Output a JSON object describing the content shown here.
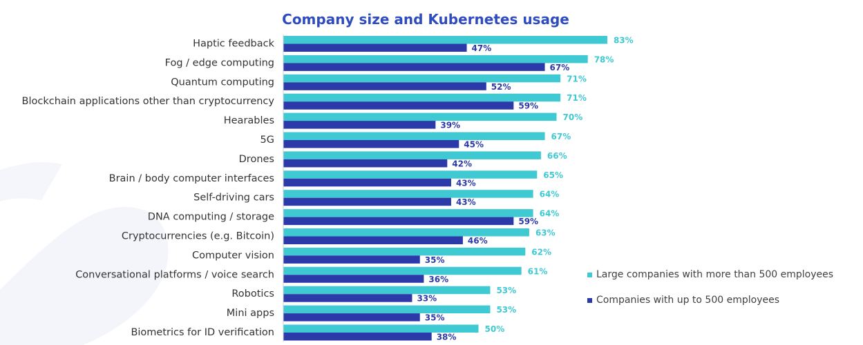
{
  "chart_data": {
    "type": "bar",
    "orientation": "horizontal",
    "title": "Company size and Kubernetes usage",
    "categories": [
      "Haptic feedback",
      "Fog / edge computing",
      "Quantum computing",
      "Blockchain applications other than cryptocurrency",
      "Hearables",
      "5G",
      "Drones",
      "Brain / body computer interfaces",
      "Self-driving cars",
      "DNA computing / storage",
      "Cryptocurrencies (e.g. Bitcoin)",
      "Computer vision",
      "Conversational platforms / voice search",
      "Robotics",
      "Mini apps",
      "Biometrics for ID verification"
    ],
    "series": [
      {
        "name": "Large companies with more than 500 employees",
        "color": "#3fc9d3",
        "values": [
          83,
          78,
          71,
          71,
          70,
          67,
          66,
          65,
          64,
          64,
          63,
          62,
          61,
          53,
          53,
          50
        ],
        "labels": [
          "83%",
          "78%",
          "71%",
          "71%",
          "70%",
          "67%",
          "66%",
          "65%",
          "64%",
          "64%",
          "63%",
          "62%",
          "61%",
          "53%",
          "53%",
          "50%"
        ]
      },
      {
        "name": "Companies with up to 500 employees",
        "color": "#2b3aa8",
        "values": [
          47,
          67,
          52,
          59,
          39,
          45,
          42,
          43,
          43,
          59,
          46,
          35,
          36,
          33,
          35,
          38
        ],
        "labels": [
          "47%",
          "67%",
          "52%",
          "59%",
          "39%",
          "45%",
          "42%",
          "43%",
          "43%",
          "59%",
          "46%",
          "35%",
          "36%",
          "33%",
          "35%",
          "38%"
        ]
      }
    ],
    "xlim": [
      0,
      100
    ],
    "grid": false,
    "legend_position": "right"
  }
}
